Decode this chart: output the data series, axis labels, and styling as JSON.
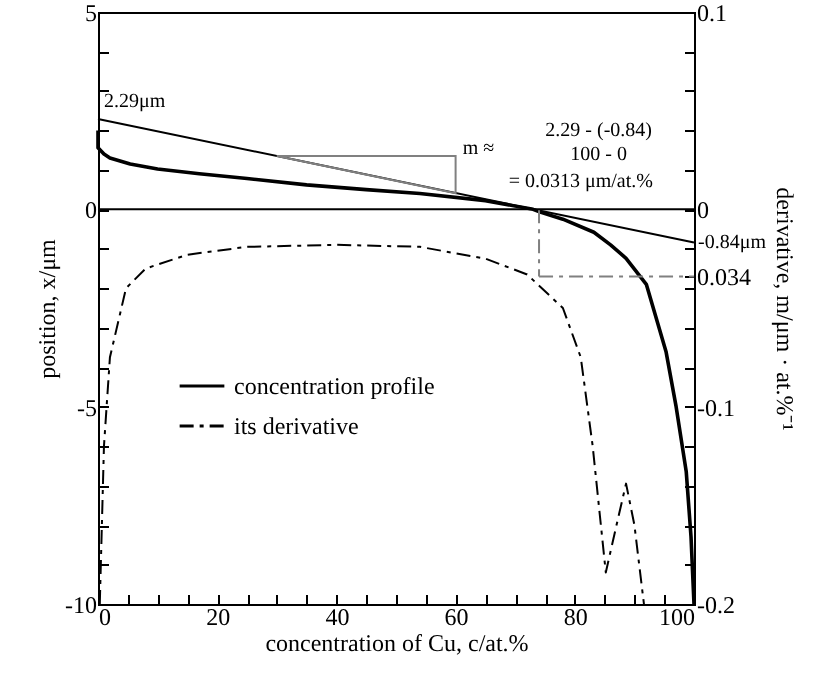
{
  "chart_data": {
    "type": "line",
    "xlabel": "concentration of Cu, c/at.%",
    "ylabel": "position, x/μm",
    "y2label": "derivative, m/μm · at.%⁻¹",
    "xlim": [
      0,
      100
    ],
    "xticks": [
      0,
      {
        "value": 5,
        "label": null
      },
      {
        "value": 10,
        "label": null
      },
      {
        "value": 15,
        "label": null
      },
      20,
      {
        "value": 25,
        "label": null
      },
      {
        "value": 30,
        "label": null
      },
      {
        "value": 35,
        "label": null
      },
      40,
      {
        "value": 45,
        "label": null
      },
      {
        "value": 50,
        "label": null
      },
      {
        "value": 55,
        "label": null
      },
      60,
      {
        "value": 65,
        "label": null
      },
      {
        "value": 70,
        "label": null
      },
      {
        "value": 75,
        "label": null
      },
      80,
      {
        "value": 85,
        "label": null
      },
      {
        "value": 90,
        "label": null
      },
      {
        "value": 95,
        "label": null
      },
      100
    ],
    "ylim": [
      -10,
      5
    ],
    "yticks": [
      -10,
      {
        "value": -9,
        "label": null
      },
      {
        "value": -8,
        "label": null
      },
      {
        "value": -7,
        "label": null
      },
      {
        "value": -6,
        "label": null
      },
      -5,
      {
        "value": -4,
        "label": null
      },
      {
        "value": -3,
        "label": null
      },
      {
        "value": -2,
        "label": null
      },
      {
        "value": -1,
        "label": null
      },
      0,
      {
        "value": 1,
        "label": null
      },
      {
        "value": 2,
        "label": null
      },
      {
        "value": 3,
        "label": null
      },
      {
        "value": 4,
        "label": null
      },
      5
    ],
    "y2lim": [
      -0.2,
      0.1
    ],
    "y2ticks": [
      -0.2,
      {
        "value": -0.18,
        "label": null
      },
      {
        "value": -0.16,
        "label": null
      },
      {
        "value": -0.14,
        "label": null
      },
      {
        "value": -0.12,
        "label": null
      },
      -0.1,
      {
        "value": -0.08,
        "label": null
      },
      {
        "value": -0.06,
        "label": null
      },
      {
        "value": -0.04,
        "label": null
      },
      {
        "value": -0.034,
        "label": "0.034"
      },
      {
        "value": -0.02,
        "label": null
      },
      0,
      {
        "value": 0.02,
        "label": null
      },
      {
        "value": 0.04,
        "label": null
      },
      {
        "value": 0.06,
        "label": null
      },
      {
        "value": 0.08,
        "label": null
      },
      0.1
    ],
    "grid": false,
    "legend": "bottom left",
    "marker": "none",
    "series": [
      {
        "name": "concentration profile",
        "color": "#000000",
        "line_style": "solid",
        "x": [
          0,
          0,
          1,
          2,
          5.4,
          10,
          17,
          25,
          35,
          45,
          54,
          65,
          73,
          74.2,
          78,
          83.2,
          86,
          88.6,
          92,
          95.3,
          97,
          98.7,
          99.5,
          100
        ],
        "values": [
          2.0,
          1.56,
          1.4,
          1.3,
          1.15,
          1.02,
          0.9,
          0.78,
          0.62,
          0.5,
          0.4,
          0.22,
          0,
          -0.07,
          -0.25,
          -0.58,
          -0.9,
          -1.24,
          -1.9,
          -3.6,
          -5,
          -6.65,
          -8.3,
          -10
        ]
      },
      {
        "name": "its derivative",
        "color": "#000000",
        "line_style": "dashed",
        "axis": "y2",
        "x": [
          0.3,
          1,
          2,
          4.7,
          8,
          15,
          25,
          40,
          54,
          65,
          72,
          78,
          81,
          83,
          85.2,
          87,
          88.6,
          90,
          91.6
        ],
        "values": [
          -0.2,
          -0.12,
          -0.075,
          -0.04,
          -0.03,
          -0.023,
          -0.019,
          -0.018,
          -0.019,
          -0.025,
          -0.033,
          -0.05,
          -0.075,
          -0.12,
          -0.184,
          -0.16,
          -0.139,
          -0.16,
          -0.2
        ]
      },
      {
        "color": "#000000",
        "line_style": "solid",
        "x": [
          0,
          100
        ],
        "values": [
          2.29,
          -0.84
        ]
      },
      {
        "color": "#808080",
        "line_style": "dashed",
        "x": [
          74,
          74
        ],
        "values": [
          0,
          -1.7
        ]
      },
      {
        "color": "#808080",
        "line_style": "dashed",
        "x": [
          74,
          100
        ],
        "values": [
          -1.7,
          -1.7
        ]
      }
    ],
    "ref_lines": [
      {
        "axis": "y",
        "value": 0,
        "color": "#000000"
      }
    ],
    "annotations": [
      {
        "text": "2.29μm",
        "x": 0,
        "y": 2.29
      },
      {
        "text": "-0.84μm",
        "x": 100,
        "y": -0.84
      },
      "m ≈",
      "2.29 - (-0.84)",
      "100 - 0",
      "= 0.0313 μm/at.%"
    ]
  }
}
